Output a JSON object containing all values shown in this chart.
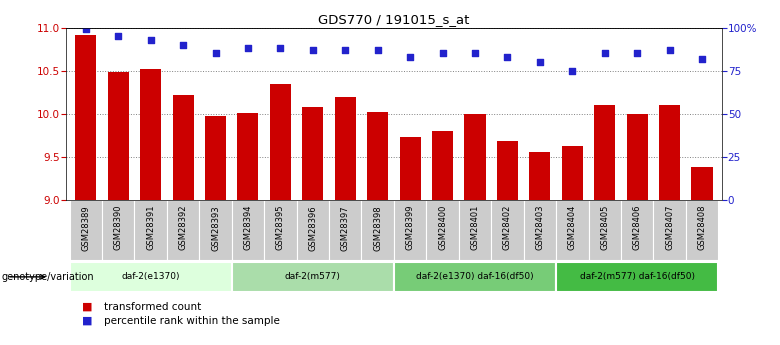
{
  "title": "GDS770 / 191015_s_at",
  "categories": [
    "GSM28389",
    "GSM28390",
    "GSM28391",
    "GSM28392",
    "GSM28393",
    "GSM28394",
    "GSM28395",
    "GSM28396",
    "GSM28397",
    "GSM28398",
    "GSM28399",
    "GSM28400",
    "GSM28401",
    "GSM28402",
    "GSM28403",
    "GSM28404",
    "GSM28405",
    "GSM28406",
    "GSM28407",
    "GSM28408"
  ],
  "bar_values": [
    10.92,
    10.49,
    10.52,
    10.22,
    9.97,
    10.01,
    10.35,
    10.08,
    10.2,
    10.02,
    9.73,
    9.8,
    10.0,
    9.68,
    9.56,
    9.63,
    10.1,
    10.0,
    10.1,
    9.38
  ],
  "percentile_values": [
    99,
    95,
    93,
    90,
    85,
    88,
    88,
    87,
    87,
    87,
    83,
    85,
    85,
    83,
    80,
    75,
    85,
    85,
    87,
    82
  ],
  "ylim": [
    9.0,
    11.0
  ],
  "yticks": [
    9.0,
    9.5,
    10.0,
    10.5,
    11.0
  ],
  "right_yticks": [
    0,
    25,
    50,
    75,
    100
  ],
  "bar_color": "#cc0000",
  "dot_color": "#2222cc",
  "bg_color": "#ffffff",
  "groups": [
    {
      "label": "daf-2(e1370)",
      "start": 0,
      "end": 4,
      "color": "#ddffdd"
    },
    {
      "label": "daf-2(m577)",
      "start": 5,
      "end": 9,
      "color": "#aaddaa"
    },
    {
      "label": "daf-2(e1370) daf-16(df50)",
      "start": 10,
      "end": 14,
      "color": "#77cc77"
    },
    {
      "label": "daf-2(m577) daf-16(df50)",
      "start": 15,
      "end": 19,
      "color": "#44bb44"
    }
  ],
  "genotype_label": "genotype/variation",
  "legend_items": [
    {
      "color": "#cc0000",
      "label": "transformed count"
    },
    {
      "color": "#2222cc",
      "label": "percentile rank within the sample"
    }
  ],
  "tick_bg_color": "#cccccc"
}
